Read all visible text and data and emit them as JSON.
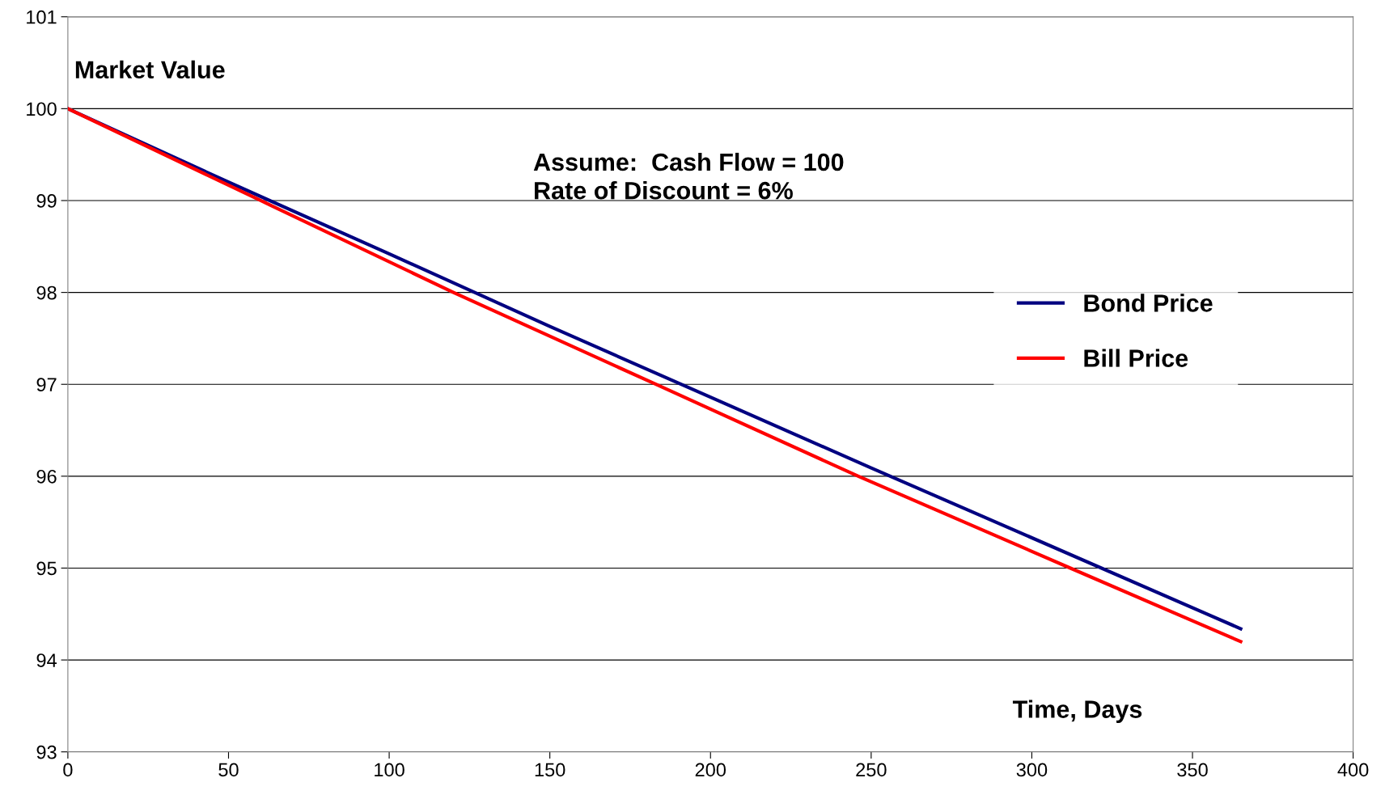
{
  "chart_data": {
    "type": "line",
    "xlabel": "Time, Days",
    "ylabel": "Market Value",
    "annotations": [
      "Assume:  Cash Flow = 100\nRate of Discount = 6%"
    ],
    "series": [
      {
        "name": "Bond Price",
        "color": "#000080",
        "x": [
          0,
          50,
          100,
          150,
          200,
          250,
          300,
          365
        ],
        "values": [
          100,
          99.2,
          98.42,
          97.63,
          96.86,
          96.09,
          95.33,
          94.34
        ]
      },
      {
        "name": "Bill Price",
        "color": "#ff0000",
        "x": [
          0,
          60,
          120,
          183,
          246,
          312,
          365
        ],
        "values": [
          100,
          99,
          98,
          97,
          96,
          95,
          94.2
        ]
      }
    ],
    "xlim": [
      0,
      400
    ],
    "xticks": [
      0,
      50,
      100,
      150,
      200,
      250,
      300,
      350,
      400
    ],
    "ylim": [
      93,
      101
    ],
    "yticks": [
      93,
      94,
      95,
      96,
      97,
      98,
      99,
      100,
      101
    ],
    "grid": "y",
    "legend": "right",
    "marker": "none",
    "line_style": "solid"
  }
}
